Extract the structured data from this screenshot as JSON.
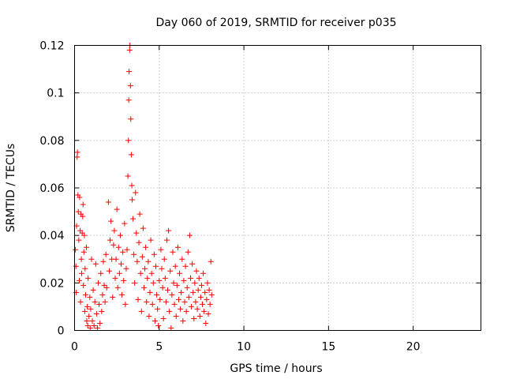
{
  "chart_data": {
    "type": "scatter",
    "title": "Day 060 of 2019, SRMTID for receiver p035",
    "xlabel": "GPS time / hours",
    "ylabel": "SRMTID / TECUs",
    "xlim": [
      0,
      24
    ],
    "ylim": [
      0,
      0.12
    ],
    "x_ticks": [
      0,
      5,
      10,
      15,
      20
    ],
    "x_tick_labels": [
      "0",
      "5",
      "10",
      "15",
      "20"
    ],
    "y_ticks": [
      0,
      0.02,
      0.04,
      0.06,
      0.08,
      0.1,
      0.12
    ],
    "y_tick_labels": [
      "0",
      "0.02",
      "0.04",
      "0.06",
      "0.08",
      "0.1",
      "0.12"
    ],
    "grid": true,
    "marker": "+",
    "marker_color": "#ff0000",
    "series": [
      {
        "points": [
          [
            0.05,
            0.034
          ],
          [
            0.08,
            0.027
          ],
          [
            0.1,
            0.016
          ],
          [
            0.12,
            0.044
          ],
          [
            0.15,
            0.073
          ],
          [
            0.17,
            0.075
          ],
          [
            0.2,
            0.057
          ],
          [
            0.22,
            0.05
          ],
          [
            0.25,
            0.038
          ],
          [
            0.28,
            0.021
          ],
          [
            0.3,
            0.056
          ],
          [
            0.33,
            0.042
          ],
          [
            0.35,
            0.012
          ],
          [
            0.38,
            0.049
          ],
          [
            0.4,
            0.03
          ],
          [
            0.42,
            0.024
          ],
          [
            0.45,
            0.041
          ],
          [
            0.48,
            0.048
          ],
          [
            0.5,
            0.053
          ],
          [
            0.52,
            0.019
          ],
          [
            0.55,
            0.033
          ],
          [
            0.58,
            0.04
          ],
          [
            0.6,
            0.008
          ],
          [
            0.62,
            0.026
          ],
          [
            0.65,
            0.015
          ],
          [
            0.7,
            0.035
          ],
          [
            0.72,
            0.004
          ],
          [
            0.75,
            0.01
          ],
          [
            0.78,
            0.002
          ],
          [
            0.8,
            0.022
          ],
          [
            0.85,
            0.006
          ],
          [
            0.9,
            0.014
          ],
          [
            0.92,
            0.001
          ],
          [
            0.95,
            0.009
          ],
          [
            1.0,
            0.03
          ],
          [
            1.05,
            0.004
          ],
          [
            1.1,
            0.017
          ],
          [
            1.15,
            0.002
          ],
          [
            1.2,
            0.012
          ],
          [
            1.25,
            0.028
          ],
          [
            1.3,
            0.007
          ],
          [
            1.35,
            0.001
          ],
          [
            1.4,
            0.02
          ],
          [
            1.45,
            0.011
          ],
          [
            1.5,
            0.003
          ],
          [
            1.55,
            0.024
          ],
          [
            1.6,
            0.008
          ],
          [
            1.65,
            0.015
          ],
          [
            1.7,
            0.029
          ],
          [
            1.75,
            0.019
          ],
          [
            1.8,
            0.012
          ],
          [
            1.85,
            0.032
          ],
          [
            1.9,
            0.018
          ],
          [
            2.0,
            0.054
          ],
          [
            2.05,
            0.025
          ],
          [
            2.1,
            0.038
          ],
          [
            2.15,
            0.046
          ],
          [
            2.2,
            0.03
          ],
          [
            2.25,
            0.014
          ],
          [
            2.3,
            0.036
          ],
          [
            2.35,
            0.042
          ],
          [
            2.4,
            0.022
          ],
          [
            2.45,
            0.03
          ],
          [
            2.5,
            0.051
          ],
          [
            2.55,
            0.018
          ],
          [
            2.6,
            0.035
          ],
          [
            2.65,
            0.024
          ],
          [
            2.7,
            0.04
          ],
          [
            2.75,
            0.028
          ],
          [
            2.8,
            0.015
          ],
          [
            2.85,
            0.033
          ],
          [
            2.9,
            0.021
          ],
          [
            2.95,
            0.045
          ],
          [
            3.0,
            0.011
          ],
          [
            3.05,
            0.026
          ],
          [
            3.1,
            0.034
          ],
          [
            3.15,
            0.065
          ],
          [
            3.18,
            0.08
          ],
          [
            3.2,
            0.097
          ],
          [
            3.22,
            0.109
          ],
          [
            3.25,
            0.118
          ],
          [
            3.27,
            0.12
          ],
          [
            3.3,
            0.103
          ],
          [
            3.32,
            0.089
          ],
          [
            3.35,
            0.074
          ],
          [
            3.38,
            0.061
          ],
          [
            3.4,
            0.055
          ],
          [
            3.45,
            0.047
          ],
          [
            3.5,
            0.032
          ],
          [
            3.55,
            0.02
          ],
          [
            3.6,
            0.058
          ],
          [
            3.65,
            0.041
          ],
          [
            3.7,
            0.029
          ],
          [
            3.75,
            0.013
          ],
          [
            3.8,
            0.037
          ],
          [
            3.85,
            0.049
          ],
          [
            3.9,
            0.024
          ],
          [
            3.95,
            0.008
          ],
          [
            4.0,
            0.031
          ],
          [
            4.05,
            0.043
          ],
          [
            4.1,
            0.018
          ],
          [
            4.15,
            0.026
          ],
          [
            4.2,
            0.035
          ],
          [
            4.25,
            0.012
          ],
          [
            4.3,
            0.022
          ],
          [
            4.35,
            0.029
          ],
          [
            4.4,
            0.006
          ],
          [
            4.45,
            0.016
          ],
          [
            4.5,
            0.038
          ],
          [
            4.55,
            0.024
          ],
          [
            4.6,
            0.011
          ],
          [
            4.65,
            0.02
          ],
          [
            4.7,
            0.032
          ],
          [
            4.75,
            0.004
          ],
          [
            4.8,
            0.027
          ],
          [
            4.85,
            0.015
          ],
          [
            4.9,
            0.009
          ],
          [
            4.95,
            0.002
          ],
          [
            5.0,
            0.021
          ],
          [
            5.05,
            0.013
          ],
          [
            5.1,
            0.034
          ],
          [
            5.15,
            0.026
          ],
          [
            5.2,
            0.018
          ],
          [
            5.25,
            0.005
          ],
          [
            5.3,
            0.03
          ],
          [
            5.35,
            0.022
          ],
          [
            5.4,
            0.012
          ],
          [
            5.45,
            0.038
          ],
          [
            5.5,
            0.017
          ],
          [
            5.55,
            0.042
          ],
          [
            5.6,
            0.008
          ],
          [
            5.65,
            0.025
          ],
          [
            5.7,
            0.001
          ],
          [
            5.75,
            0.015
          ],
          [
            5.8,
            0.033
          ],
          [
            5.85,
            0.02
          ],
          [
            5.9,
            0.011
          ],
          [
            5.95,
            0.027
          ],
          [
            6.0,
            0.006
          ],
          [
            6.05,
            0.019
          ],
          [
            6.1,
            0.035
          ],
          [
            6.15,
            0.013
          ],
          [
            6.2,
            0.024
          ],
          [
            6.25,
            0.009
          ],
          [
            6.3,
            0.016
          ],
          [
            6.35,
            0.03
          ],
          [
            6.4,
            0.004
          ],
          [
            6.45,
            0.021
          ],
          [
            6.5,
            0.012
          ],
          [
            6.55,
            0.027
          ],
          [
            6.6,
            0.008
          ],
          [
            6.65,
            0.018
          ],
          [
            6.7,
            0.033
          ],
          [
            6.75,
            0.014
          ],
          [
            6.8,
            0.04
          ],
          [
            6.85,
            0.022
          ],
          [
            6.9,
            0.01
          ],
          [
            6.95,
            0.028
          ],
          [
            7.0,
            0.016
          ],
          [
            7.05,
            0.005
          ],
          [
            7.1,
            0.02
          ],
          [
            7.15,
            0.012
          ],
          [
            7.2,
            0.025
          ],
          [
            7.25,
            0.009
          ],
          [
            7.3,
            0.017
          ],
          [
            7.35,
            0.022
          ],
          [
            7.4,
            0.006
          ],
          [
            7.45,
            0.014
          ],
          [
            7.5,
            0.019
          ],
          [
            7.55,
            0.011
          ],
          [
            7.6,
            0.024
          ],
          [
            7.65,
            0.008
          ],
          [
            7.7,
            0.016
          ],
          [
            7.75,
            0.003
          ],
          [
            7.8,
            0.013
          ],
          [
            7.85,
            0.02
          ],
          [
            7.9,
            0.007
          ],
          [
            7.95,
            0.017
          ],
          [
            8.0,
            0.011
          ],
          [
            8.05,
            0.029
          ],
          [
            8.1,
            0.015
          ]
        ]
      }
    ]
  }
}
